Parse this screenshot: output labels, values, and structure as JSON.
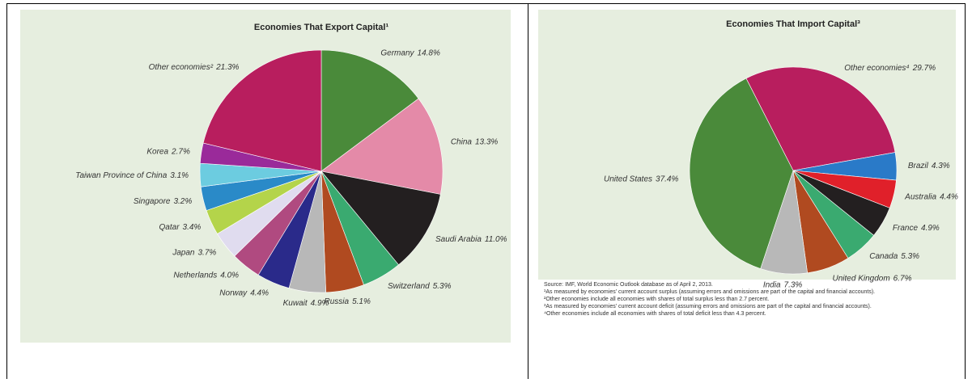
{
  "chart_data": [
    {
      "type": "pie",
      "title": "Economies That Export Capital¹",
      "categories": [
        "Germany",
        "China",
        "Saudi Arabia",
        "Switzerland",
        "Russia",
        "Kuwait",
        "Norway",
        "Netherlands",
        "Japan",
        "Qatar",
        "Singapore",
        "Taiwan Province of China",
        "Korea",
        "Other economies²"
      ],
      "values": [
        14.8,
        13.3,
        11.0,
        5.3,
        5.1,
        4.9,
        4.4,
        4.0,
        3.7,
        3.4,
        3.2,
        3.1,
        2.7,
        21.3
      ],
      "value_labels": [
        "14.8%",
        "13.3%",
        "11.0%",
        "5.3%",
        "5.1%",
        "4.9%",
        "4.4%",
        "4.0%",
        "3.7%",
        "3.4%",
        "3.2%",
        "3.1%",
        "2.7%",
        "21.3%"
      ],
      "colors": [
        "#4a8a3a",
        "#e48aa8",
        "#231f20",
        "#3aaa70",
        "#b04a20",
        "#b8b8b8",
        "#2a2a8a",
        "#b04a80",
        "#e0dcef",
        "#b4d44a",
        "#2a8ac8",
        "#6ccce0",
        "#9a2a9a",
        "#b81e5e"
      ]
    },
    {
      "type": "pie",
      "title": "Economies That Import Capital³",
      "categories": [
        "Other economies⁴",
        "Brazil",
        "Australia",
        "France",
        "Canada",
        "United Kingdom",
        "India",
        "United States"
      ],
      "values": [
        29.7,
        4.3,
        4.4,
        4.9,
        5.3,
        6.7,
        7.3,
        37.4
      ],
      "value_labels": [
        "29.7%",
        "4.3%",
        "4.4%",
        "4.9%",
        "5.3%",
        "6.7%",
        "7.3%",
        "37.4%"
      ],
      "colors": [
        "#b81e5e",
        "#2a7ac8",
        "#e0202a",
        "#231f20",
        "#3aaa70",
        "#b04a20",
        "#b8b8b8",
        "#4a8a3a"
      ]
    }
  ],
  "notes": [
    "Source: IMF, World Economic Outlook database as of April 2, 2013.",
    "¹As measured by economies' current account surplus (assuming errors and omissions are part of the capital and financial accounts).",
    "²Other economies include all economies with shares of total surplus less than 2.7 percent.",
    "³As measured by economies' current account deficit (assuming errors and omissions are part of the capital and financial accounts).",
    "⁴Other economies include all economies with shares of total deficit less than 4.3 percent."
  ]
}
